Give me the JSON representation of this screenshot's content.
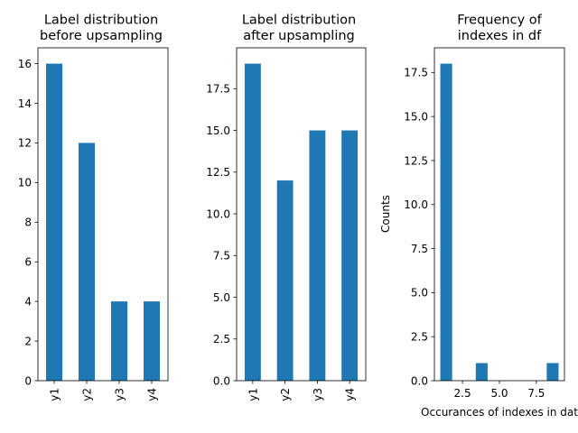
{
  "chart_data": [
    {
      "type": "bar",
      "title_lines": [
        "Label distribution",
        "before upsampling"
      ],
      "categories": [
        "y1",
        "y2",
        "y3",
        "y4"
      ],
      "values": [
        16,
        12,
        4,
        4
      ],
      "xlabel": "",
      "ylabel": "",
      "ylim": [
        0,
        16.8
      ],
      "yticks": [
        0,
        2,
        4,
        6,
        8,
        10,
        12,
        14,
        16
      ],
      "ytick_labels": [
        "0",
        "2",
        "4",
        "6",
        "8",
        "10",
        "12",
        "14",
        "16"
      ],
      "bar_color": "#1f77b4",
      "grid": false
    },
    {
      "type": "bar",
      "title_lines": [
        "Label distribution",
        "after upsampling"
      ],
      "categories": [
        "y1",
        "y2",
        "y3",
        "y4"
      ],
      "values": [
        19,
        12,
        15,
        15
      ],
      "xlabel": "",
      "ylabel": "",
      "ylim": [
        0,
        19.95
      ],
      "yticks": [
        0,
        2.5,
        5,
        7.5,
        10,
        12.5,
        15,
        17.5
      ],
      "ytick_labels": [
        "0.0",
        "2.5",
        "5.0",
        "7.5",
        "10.0",
        "12.5",
        "15.0",
        "17.5"
      ],
      "bar_color": "#1f77b4",
      "grid": false
    },
    {
      "type": "histogram",
      "title_lines": [
        "Frequency of",
        "indexes in df"
      ],
      "bins": [
        {
          "start": 1.0,
          "end": 1.8,
          "count": 18
        },
        {
          "start": 1.8,
          "end": 2.6,
          "count": 0
        },
        {
          "start": 2.6,
          "end": 3.4,
          "count": 0
        },
        {
          "start": 3.4,
          "end": 4.2,
          "count": 1
        },
        {
          "start": 4.2,
          "end": 5.0,
          "count": 0
        },
        {
          "start": 5.0,
          "end": 5.8,
          "count": 0
        },
        {
          "start": 5.8,
          "end": 6.6,
          "count": 0
        },
        {
          "start": 6.6,
          "end": 7.4,
          "count": 0
        },
        {
          "start": 7.4,
          "end": 8.2,
          "count": 0
        },
        {
          "start": 8.2,
          "end": 9.0,
          "count": 1
        }
      ],
      "xlabel": "Occurances of indexes in dat",
      "ylabel": "Counts",
      "xlim": [
        0.6,
        9.4
      ],
      "ylim": [
        0,
        18.9
      ],
      "xticks": [
        2.5,
        5.0,
        7.5
      ],
      "xtick_labels": [
        "2.5",
        "5.0",
        "7.5"
      ],
      "yticks": [
        0,
        2.5,
        5,
        7.5,
        10,
        12.5,
        15,
        17.5
      ],
      "ytick_labels": [
        "0.0",
        "2.5",
        "5.0",
        "7.5",
        "10.0",
        "12.5",
        "15.0",
        "17.5"
      ],
      "bar_color": "#1f77b4",
      "grid": false
    }
  ]
}
